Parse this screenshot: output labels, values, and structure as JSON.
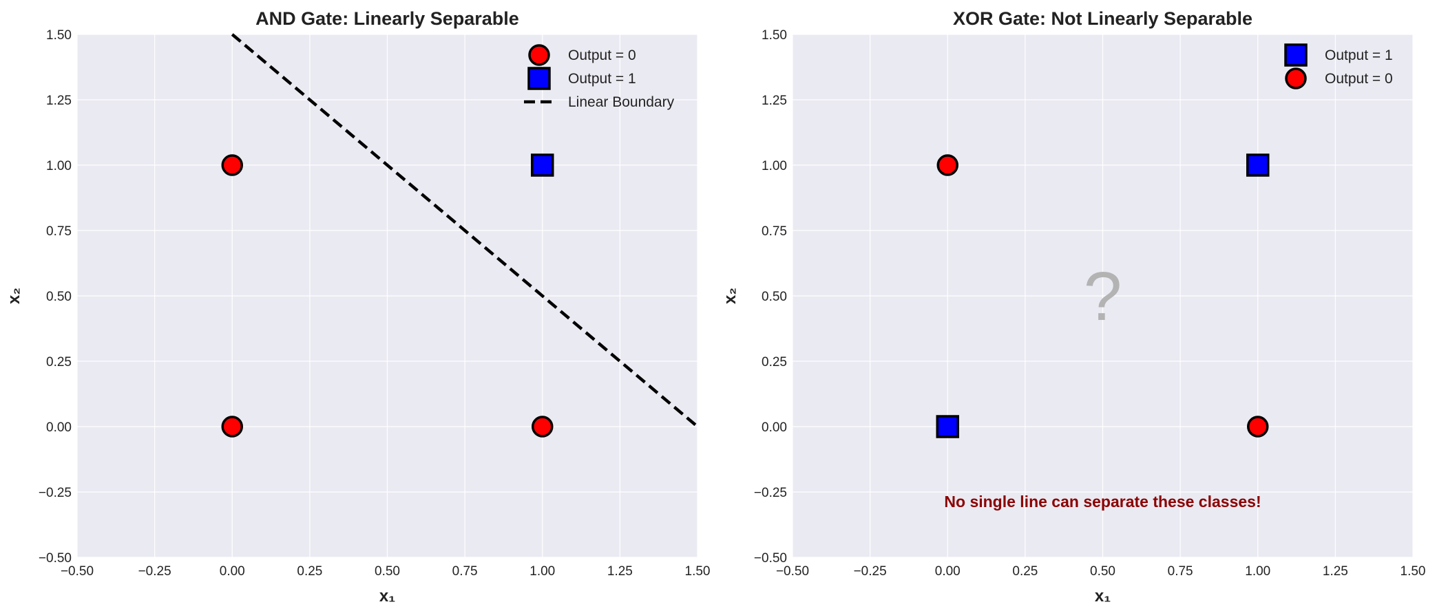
{
  "chart_data": [
    {
      "type": "scatter",
      "title": "AND Gate: Linearly Separable",
      "xlabel": "x₁",
      "ylabel": "x₂",
      "xlim": [
        -0.5,
        1.5
      ],
      "ylim": [
        -0.5,
        1.5
      ],
      "xticks": [
        "−0.50",
        "−0.25",
        "0.00",
        "0.25",
        "0.50",
        "0.75",
        "1.00",
        "1.25",
        "1.50"
      ],
      "yticks": [
        "−0.50",
        "−0.25",
        "0.00",
        "0.25",
        "0.50",
        "0.75",
        "1.00",
        "1.25",
        "1.50"
      ],
      "grid": true,
      "legend_position": "top-right",
      "series": [
        {
          "name": "Output = 0",
          "marker": "circle",
          "color": "#ff0000",
          "points": [
            [
              0,
              0
            ],
            [
              0,
              1
            ],
            [
              1,
              0
            ]
          ]
        },
        {
          "name": "Output = 1",
          "marker": "square",
          "color": "#0000ff",
          "points": [
            [
              1,
              1
            ]
          ]
        }
      ],
      "lines": [
        {
          "name": "Linear Boundary",
          "style": "dashed",
          "color": "#000000",
          "points": [
            [
              0,
              1.5
            ],
            [
              1.5,
              0
            ]
          ]
        }
      ],
      "legend": [
        "Output = 0",
        "Output = 1",
        "Linear Boundary"
      ],
      "annotations": []
    },
    {
      "type": "scatter",
      "title": "XOR Gate: Not Linearly Separable",
      "xlabel": "x₁",
      "ylabel": "x₂",
      "xlim": [
        -0.5,
        1.5
      ],
      "ylim": [
        -0.5,
        1.5
      ],
      "xticks": [
        "−0.50",
        "−0.25",
        "0.00",
        "0.25",
        "0.50",
        "0.75",
        "1.00",
        "1.25",
        "1.50"
      ],
      "yticks": [
        "−0.50",
        "−0.25",
        "0.00",
        "0.25",
        "0.50",
        "0.75",
        "1.00",
        "1.25",
        "1.50"
      ],
      "grid": true,
      "legend_position": "top-right",
      "series": [
        {
          "name": "Output = 1",
          "marker": "square",
          "color": "#0000ff",
          "points": [
            [
              0,
              0
            ],
            [
              1,
              1
            ]
          ]
        },
        {
          "name": "Output = 0",
          "marker": "circle",
          "color": "#ff0000",
          "points": [
            [
              0,
              1
            ],
            [
              1,
              0
            ]
          ]
        }
      ],
      "lines": [],
      "legend": [
        "Output = 1",
        "Output = 0"
      ],
      "annotations": [
        {
          "text": "?",
          "x": 0.5,
          "y": 0.5,
          "color": "#b3b3b3",
          "role": "question"
        },
        {
          "text": "No single line can separate these classes!",
          "x": 0.5,
          "y": -0.25,
          "color": "#8b0000",
          "role": "note"
        }
      ]
    }
  ],
  "colors": {
    "plot_background": "#eaeaf2",
    "grid": "#ffffff",
    "marker_edge": "#000000"
  }
}
